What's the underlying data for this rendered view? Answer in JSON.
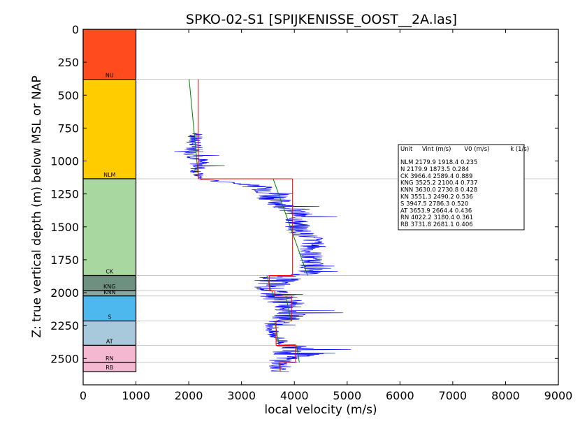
{
  "chart_data": {
    "type": "line",
    "title": "SPKO-02-S1 [SPIJKENISSE_OOST__2A.las]",
    "xlabel": "local velocity (m/s)",
    "ylabel": "Z: true vertical depth (m) below MSL or NAP",
    "xlim": [
      0,
      9000
    ],
    "ylim": [
      0,
      2700
    ],
    "y_inverted": true,
    "x_ticks": [
      "0",
      "1000",
      "2000",
      "3000",
      "4000",
      "5000",
      "6000",
      "7000",
      "8000",
      "9000"
    ],
    "y_ticks": [
      "0",
      "250",
      "500",
      "750",
      "1000",
      "1250",
      "1500",
      "1750",
      "2000",
      "2250",
      "2500"
    ],
    "grid": false,
    "colors": {
      "velocity_log": "#0000ff",
      "interval_velocity": "#ff0000",
      "v0_k_model": "#008000",
      "unit_boundary": "#c8c8c8"
    },
    "units": [
      {
        "label": "NU",
        "top": 0,
        "base": 380,
        "color": "#ff4b1e"
      },
      {
        "label": "NLM",
        "top": 380,
        "base": 1135,
        "color": "#ffcc00"
      },
      {
        "label": "CK",
        "top": 1135,
        "base": 1870,
        "color": "#a8d8a0"
      },
      {
        "label": "KNG",
        "top": 1870,
        "base": 1985,
        "color": "#6e9080"
      },
      {
        "label": "KNN",
        "top": 1985,
        "base": 2025,
        "color": "#8aa8a0"
      },
      {
        "label": "S",
        "top": 2025,
        "base": 2215,
        "color": "#4db8ee"
      },
      {
        "label": "AT",
        "top": 2215,
        "base": 2400,
        "color": "#a8c8dc"
      },
      {
        "label": "RN",
        "top": 2400,
        "base": 2530,
        "color": "#f4b8d0"
      },
      {
        "label": "RB",
        "top": 2530,
        "base": 2600,
        "color": "#f4b8d0"
      }
    ],
    "interval_velocity_segments": [
      {
        "unit": "NLM",
        "v": 2179.9,
        "top": 380,
        "base": 1135
      },
      {
        "unit": "CK",
        "v": 3966.4,
        "top": 1135,
        "base": 1870
      },
      {
        "unit": "KNG",
        "v": 3525.2,
        "top": 1870,
        "base": 1985
      },
      {
        "unit": "KNN",
        "v": 3630.0,
        "top": 1985,
        "base": 2025
      },
      {
        "unit": "S",
        "v": 3947.5,
        "top": 2025,
        "base": 2215
      },
      {
        "unit": "AT",
        "v": 3653.9,
        "top": 2215,
        "base": 2400
      },
      {
        "unit": "RN",
        "v": 4022.2,
        "top": 2400,
        "base": 2530
      },
      {
        "unit": "RB",
        "v": 3731.8,
        "top": 2530,
        "base": 2600
      }
    ],
    "model_segments": [
      {
        "unit": "NLM",
        "v0": 1918.4,
        "k": 0.235,
        "top": 380,
        "base": 1135
      },
      {
        "unit": "CK",
        "v0": 2589.4,
        "k": 0.889,
        "top": 1135,
        "base": 1870
      },
      {
        "unit": "KNG",
        "v0": 2100.4,
        "k": 0.737,
        "top": 1870,
        "base": 1985
      },
      {
        "unit": "KNN",
        "v0": 2730.8,
        "k": 0.428,
        "top": 1985,
        "base": 2025
      },
      {
        "unit": "S",
        "v0": 2786.3,
        "k": 0.52,
        "top": 2025,
        "base": 2215
      },
      {
        "unit": "AT",
        "v0": 2664.4,
        "k": 0.436,
        "top": 2215,
        "base": 2400
      },
      {
        "unit": "RN",
        "v0": 3180.4,
        "k": 0.361,
        "top": 2400,
        "base": 2530
      },
      {
        "unit": "RB",
        "v0": 2681.1,
        "k": 0.406,
        "top": 2530,
        "base": 2600
      }
    ],
    "velocity_log_profile": [
      {
        "z": 790,
        "v": 2150,
        "spread": 150
      },
      {
        "z": 850,
        "v": 2080,
        "spread": 150
      },
      {
        "z": 900,
        "v": 2100,
        "spread": 180
      },
      {
        "z": 950,
        "v": 2150,
        "spread": 250
      },
      {
        "z": 1000,
        "v": 2200,
        "spread": 200
      },
      {
        "z": 1050,
        "v": 2180,
        "spread": 180
      },
      {
        "z": 1100,
        "v": 2150,
        "spread": 120
      },
      {
        "z": 1140,
        "v": 2250,
        "spread": 100
      },
      {
        "z": 1180,
        "v": 3150,
        "spread": 250
      },
      {
        "z": 1220,
        "v": 3500,
        "spread": 300
      },
      {
        "z": 1250,
        "v": 3650,
        "spread": 450
      },
      {
        "z": 1300,
        "v": 3650,
        "spread": 300
      },
      {
        "z": 1350,
        "v": 3850,
        "spread": 250
      },
      {
        "z": 1400,
        "v": 4100,
        "spread": 250
      },
      {
        "z": 1450,
        "v": 4050,
        "spread": 250
      },
      {
        "z": 1500,
        "v": 4050,
        "spread": 250
      },
      {
        "z": 1550,
        "v": 4150,
        "spread": 250
      },
      {
        "z": 1600,
        "v": 4350,
        "spread": 250
      },
      {
        "z": 1650,
        "v": 4350,
        "spread": 250
      },
      {
        "z": 1700,
        "v": 4300,
        "spread": 250
      },
      {
        "z": 1750,
        "v": 4300,
        "spread": 250
      },
      {
        "z": 1800,
        "v": 4350,
        "spread": 250
      },
      {
        "z": 1850,
        "v": 4300,
        "spread": 250
      },
      {
        "z": 1880,
        "v": 3700,
        "spread": 400
      },
      {
        "z": 1920,
        "v": 3650,
        "spread": 450
      },
      {
        "z": 1960,
        "v": 3500,
        "spread": 300
      },
      {
        "z": 2000,
        "v": 3600,
        "spread": 300
      },
      {
        "z": 2050,
        "v": 3800,
        "spread": 400
      },
      {
        "z": 2100,
        "v": 3900,
        "spread": 300
      },
      {
        "z": 2150,
        "v": 3950,
        "spread": 300
      },
      {
        "z": 2200,
        "v": 3850,
        "spread": 300
      },
      {
        "z": 2250,
        "v": 3600,
        "spread": 150
      },
      {
        "z": 2300,
        "v": 3550,
        "spread": 150
      },
      {
        "z": 2350,
        "v": 3700,
        "spread": 150
      },
      {
        "z": 2400,
        "v": 3850,
        "spread": 200
      },
      {
        "z": 2430,
        "v": 4150,
        "spread": 500
      },
      {
        "z": 2460,
        "v": 4100,
        "spread": 550
      },
      {
        "z": 2500,
        "v": 3850,
        "spread": 250
      },
      {
        "z": 2550,
        "v": 3700,
        "spread": 200
      },
      {
        "z": 2600,
        "v": 3750,
        "spread": 200
      }
    ],
    "legend_table": {
      "placement": "right",
      "header": "Unit     Vint (m/s)       V0 (m/s)           k (1/s)",
      "rows": [
        "NLM      2179.9  1918.4  0.235",
        "N        2179.9  1873.5  0.284",
        "CK       3966.4  2589.4  0.889",
        "KNG      3525.2  2100.4  0.737",
        "KNN      3630.0  2730.8  0.428",
        "KN       3551.3  2490.2  0.536",
        "S        3947.5  2786.3  0.520",
        "AT       3653.9  2664.4  0.436",
        "RN       4022.2  3180.4  0.361",
        "RB       3731.8  2681.1  0.406"
      ]
    }
  }
}
